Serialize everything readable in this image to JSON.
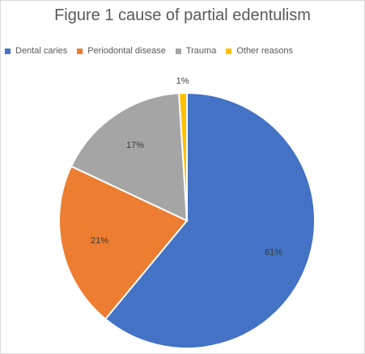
{
  "chart_data": {
    "type": "pie",
    "title": "Figure 1 cause of partial edentulism",
    "legend_position": "top",
    "start_angle_deg": 0,
    "direction": "clockwise",
    "slices": [
      {
        "name": "Dental caries",
        "value": 61,
        "label": "61%",
        "color": "#4472C4"
      },
      {
        "name": "Periodontal disease",
        "value": 21,
        "label": "21%",
        "color": "#ED7D31"
      },
      {
        "name": "Trauma",
        "value": 17,
        "label": "17%",
        "color": "#A5A5A5"
      },
      {
        "name": "Other reasons",
        "value": 1,
        "label": "1%",
        "color": "#FFC000"
      }
    ]
  }
}
